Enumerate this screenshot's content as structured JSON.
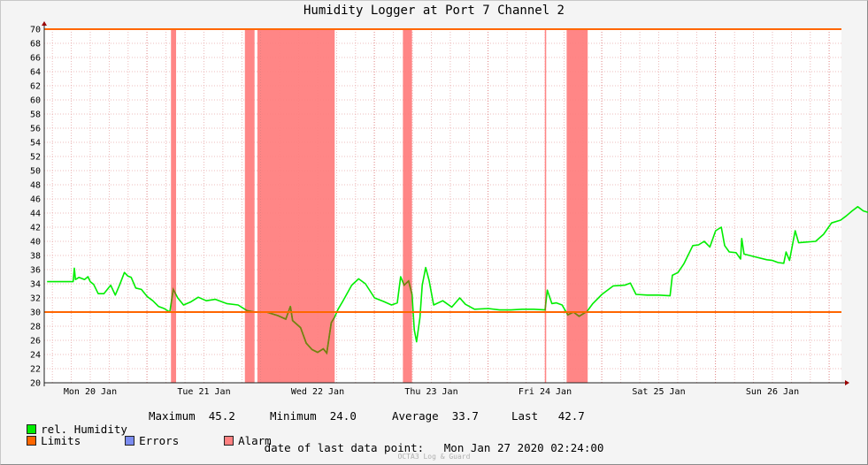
{
  "chart_data": {
    "type": "line",
    "title": "Humidity Logger at Port 7 Channel 2",
    "ylim": [
      20,
      70
    ],
    "ytick_step": 2,
    "x_range_days": [
      0,
      7.3
    ],
    "x_ticks": [
      {
        "day": 0,
        "label": "Mon 20 Jan"
      },
      {
        "day": 1,
        "label": "Tue 21 Jan"
      },
      {
        "day": 2,
        "label": "Wed 22 Jan"
      },
      {
        "day": 3,
        "label": "Thu 23 Jan"
      },
      {
        "day": 4,
        "label": "Fri 24 Jan"
      },
      {
        "day": 5,
        "label": "Sat 25 Jan"
      },
      {
        "day": 6,
        "label": "Sun 26 Jan"
      }
    ],
    "limits": {
      "upper": 70,
      "lower": 30,
      "color": "#ff6600"
    },
    "alarm_color": "#ff8080",
    "alarm_periods": [
      [
        0.71,
        0.755
      ],
      [
        1.36,
        1.445
      ],
      [
        1.47,
        2.15
      ],
      [
        2.75,
        2.83
      ],
      [
        3.998,
        4.01
      ],
      [
        4.19,
        4.375
      ]
    ],
    "series": [
      {
        "name": "rel. Humidity",
        "color": "#00ee00",
        "points": [
          [
            -0.38,
            34.3
          ],
          [
            -0.2,
            34.3
          ],
          [
            -0.15,
            34.3
          ],
          [
            -0.14,
            36.2
          ],
          [
            -0.13,
            34.6
          ],
          [
            -0.1,
            34.9
          ],
          [
            -0.05,
            34.6
          ],
          [
            -0.02,
            35.0
          ],
          [
            0.0,
            34.3
          ],
          [
            0.03,
            33.9
          ],
          [
            0.07,
            32.6
          ],
          [
            0.12,
            32.6
          ],
          [
            0.18,
            33.8
          ],
          [
            0.22,
            32.4
          ],
          [
            0.26,
            33.9
          ],
          [
            0.3,
            35.6
          ],
          [
            0.33,
            35.1
          ],
          [
            0.36,
            34.9
          ],
          [
            0.4,
            33.4
          ],
          [
            0.45,
            33.2
          ],
          [
            0.5,
            32.2
          ],
          [
            0.55,
            31.6
          ],
          [
            0.6,
            30.8
          ],
          [
            0.65,
            30.5
          ],
          [
            0.7,
            30.0
          ],
          [
            0.73,
            33.2
          ],
          [
            0.77,
            32.0
          ],
          [
            0.82,
            31.0
          ],
          [
            0.88,
            31.4
          ],
          [
            0.95,
            32.1
          ],
          [
            1.02,
            31.6
          ],
          [
            1.1,
            31.8
          ],
          [
            1.2,
            31.2
          ],
          [
            1.3,
            31.0
          ],
          [
            1.38,
            30.2
          ],
          [
            1.45,
            30.0
          ],
          [
            1.55,
            30.0
          ],
          [
            1.65,
            29.5
          ],
          [
            1.72,
            29.0
          ],
          [
            1.76,
            30.8
          ],
          [
            1.78,
            28.8
          ],
          [
            1.85,
            27.8
          ],
          [
            1.9,
            25.6
          ],
          [
            1.95,
            24.7
          ],
          [
            2.0,
            24.3
          ],
          [
            2.05,
            24.8
          ],
          [
            2.08,
            24.2
          ],
          [
            2.12,
            28.5
          ],
          [
            2.15,
            29.3
          ],
          [
            2.18,
            30.4
          ],
          [
            2.22,
            31.5
          ],
          [
            2.3,
            33.8
          ],
          [
            2.36,
            34.7
          ],
          [
            2.42,
            34.0
          ],
          [
            2.5,
            32.0
          ],
          [
            2.58,
            31.5
          ],
          [
            2.65,
            31.0
          ],
          [
            2.7,
            31.3
          ],
          [
            2.73,
            35.0
          ],
          [
            2.76,
            33.8
          ],
          [
            2.8,
            34.4
          ],
          [
            2.83,
            32.5
          ],
          [
            2.85,
            27.5
          ],
          [
            2.87,
            25.8
          ],
          [
            2.9,
            29.2
          ],
          [
            2.92,
            33.8
          ],
          [
            2.95,
            36.3
          ],
          [
            2.98,
            34.5
          ],
          [
            3.02,
            31.0
          ],
          [
            3.1,
            31.6
          ],
          [
            3.18,
            30.7
          ],
          [
            3.25,
            32.0
          ],
          [
            3.3,
            31.1
          ],
          [
            3.38,
            30.4
          ],
          [
            3.5,
            30.5
          ],
          [
            3.6,
            30.3
          ],
          [
            3.7,
            30.3
          ],
          [
            3.8,
            30.4
          ],
          [
            3.9,
            30.4
          ],
          [
            4.0,
            30.3
          ],
          [
            4.02,
            33.1
          ],
          [
            4.06,
            31.2
          ],
          [
            4.1,
            31.3
          ],
          [
            4.15,
            31.0
          ],
          [
            4.2,
            29.6
          ],
          [
            4.25,
            30.0
          ],
          [
            4.3,
            29.4
          ],
          [
            4.37,
            30.1
          ],
          [
            4.42,
            31.2
          ],
          [
            4.5,
            32.5
          ],
          [
            4.6,
            33.7
          ],
          [
            4.7,
            33.8
          ],
          [
            4.75,
            34.1
          ],
          [
            4.8,
            32.5
          ],
          [
            4.9,
            32.4
          ],
          [
            5.0,
            32.4
          ],
          [
            5.1,
            32.3
          ],
          [
            5.12,
            35.2
          ],
          [
            5.17,
            35.6
          ],
          [
            5.22,
            36.8
          ],
          [
            5.3,
            39.4
          ],
          [
            5.35,
            39.5
          ],
          [
            5.4,
            40.0
          ],
          [
            5.45,
            39.2
          ],
          [
            5.5,
            41.5
          ],
          [
            5.55,
            42.0
          ],
          [
            5.58,
            39.4
          ],
          [
            5.62,
            38.5
          ],
          [
            5.68,
            38.4
          ],
          [
            5.72,
            37.5
          ],
          [
            5.73,
            40.4
          ],
          [
            5.75,
            38.2
          ],
          [
            5.85,
            37.8
          ],
          [
            5.95,
            37.4
          ],
          [
            6.0,
            37.3
          ],
          [
            6.05,
            37.0
          ],
          [
            6.1,
            36.9
          ],
          [
            6.12,
            38.5
          ],
          [
            6.15,
            37.3
          ],
          [
            6.18,
            39.8
          ],
          [
            6.2,
            41.5
          ],
          [
            6.23,
            39.8
          ],
          [
            6.3,
            39.9
          ],
          [
            6.38,
            40.0
          ],
          [
            6.45,
            41.0
          ],
          [
            6.52,
            42.6
          ],
          [
            6.6,
            43.0
          ],
          [
            6.65,
            43.6
          ],
          [
            6.7,
            44.3
          ],
          [
            6.75,
            44.9
          ],
          [
            6.8,
            44.3
          ],
          [
            6.9,
            43.8
          ],
          [
            7.0,
            43.3
          ],
          [
            7.1,
            42.7
          ]
        ]
      }
    ],
    "legend": {
      "series_name": "rel. Humidity",
      "limits_label": "Limits",
      "errors_label": "Errors",
      "alarm_label": "Alarm",
      "errors_color": "#7b8cf0"
    },
    "stats": {
      "maximum_label": "Maximum",
      "maximum": "45.2",
      "minimum_label": "Minimum",
      "minimum": "24.0",
      "average_label": "Average",
      "average": "33.7",
      "last_label": "Last",
      "last": "42.7"
    }
  },
  "footer": {
    "last_point_label": "date of last data point:",
    "last_point_value": "Mon Jan 27 2020 02:24:00",
    "watermark": "OCTA3 Log & Guard"
  }
}
